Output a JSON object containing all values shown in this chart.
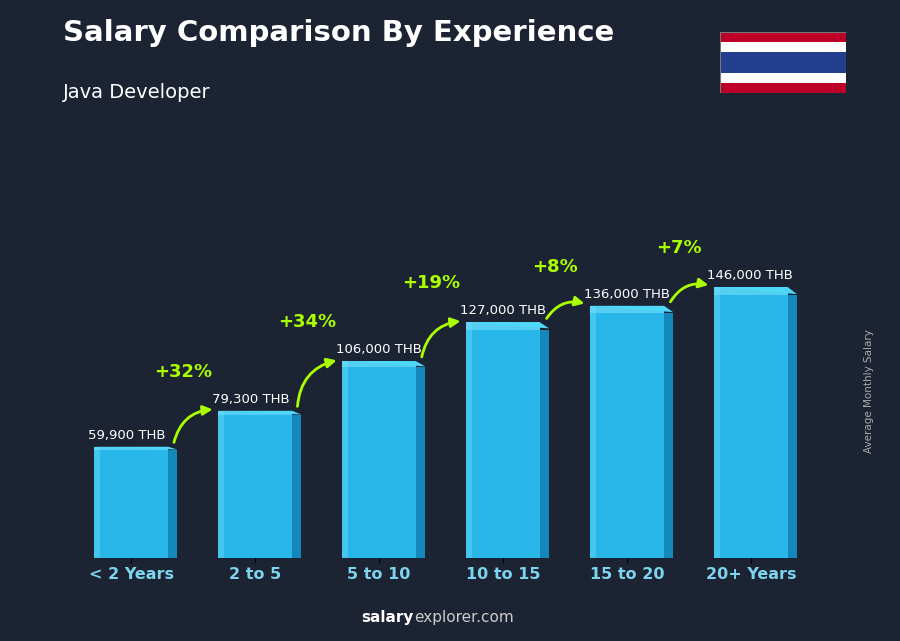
{
  "title": "Salary Comparison By Experience",
  "subtitle": "Java Developer",
  "categories": [
    "< 2 Years",
    "2 to 5",
    "5 to 10",
    "10 to 15",
    "15 to 20",
    "20+ Years"
  ],
  "values": [
    59900,
    79300,
    106000,
    127000,
    136000,
    146000
  ],
  "value_labels": [
    "59,900 THB",
    "79,300 THB",
    "106,000 THB",
    "127,000 THB",
    "136,000 THB",
    "146,000 THB"
  ],
  "pct_changes": [
    null,
    "+32%",
    "+34%",
    "+19%",
    "+8%",
    "+7%"
  ],
  "bar_color_main": "#29b6e8",
  "bar_color_light": "#55d4f5",
  "bar_color_dark": "#1488bb",
  "bar_color_top": "#80e8ff",
  "bg_color": "#1c2333",
  "title_color": "#ffffff",
  "subtitle_color": "#ffffff",
  "value_label_color": "#ffffff",
  "pct_color": "#aaff00",
  "arrow_color": "#aaff00",
  "xticklabel_color": "#7dd4ee",
  "ylabel_text": "Average Monthly Salary",
  "footer_salary_color": "#ffffff",
  "footer_explorer_color": "#aaaaaa",
  "footer_text_bold": "salary",
  "footer_text_rest": "explorer.com",
  "ylim": [
    0,
    180000
  ],
  "figsize": [
    9.0,
    6.41
  ],
  "dpi": 100,
  "bar_width": 0.6,
  "flag_stripe_colors": [
    "#BE0028",
    "#FFFFFF",
    "#243F8F",
    "#FFFFFF",
    "#BE0028"
  ],
  "flag_stripe_heights": [
    1,
    1,
    2,
    1,
    1
  ]
}
